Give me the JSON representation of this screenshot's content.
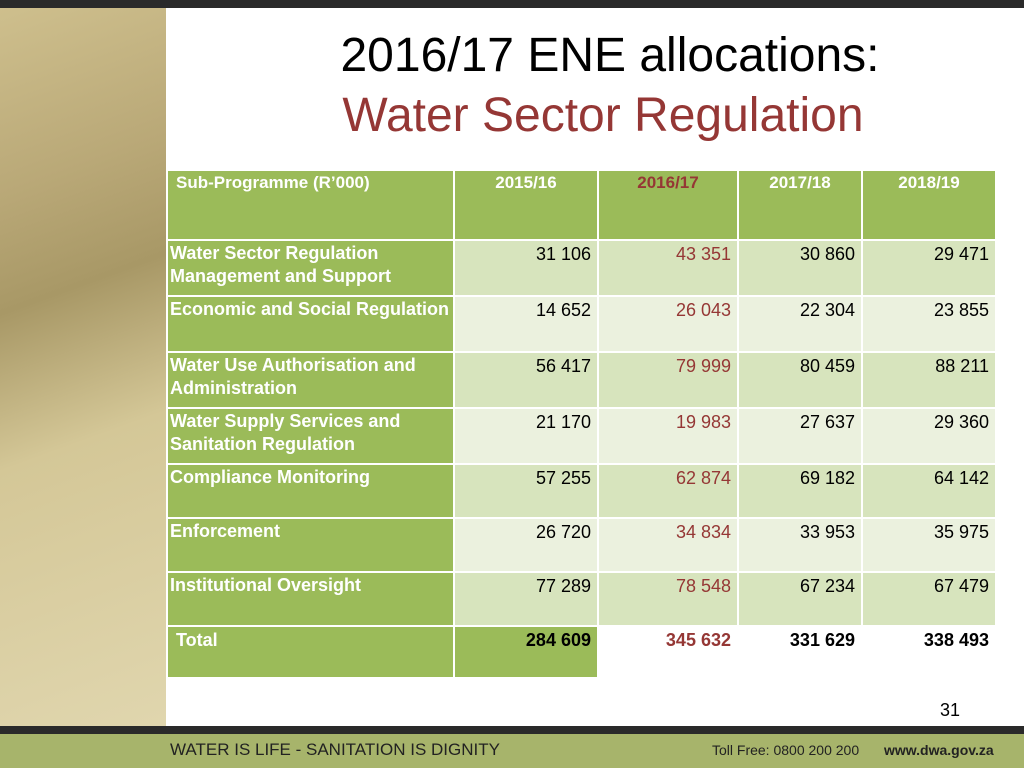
{
  "title": {
    "line1": "2016/17 ENE allocations:",
    "line2": "Water Sector Regulation"
  },
  "table": {
    "header": [
      "Sub-Programme (R’000)",
      "2015/16",
      "2016/17",
      "2017/18",
      "2018/19"
    ],
    "rows": [
      [
        "Water Sector Regulation Management and Support",
        "31 106",
        "43 351",
        "30 860",
        "29 471"
      ],
      [
        "Economic and Social Regulation",
        "14 652",
        "26 043",
        "22 304",
        "23 855"
      ],
      [
        "Water Use Authorisation and Administration",
        "56 417",
        "79 999",
        "80 459",
        "88 211"
      ],
      [
        "Water Supply Services and Sanitation Regulation",
        "21 170",
        "19 983",
        "27 637",
        "29 360"
      ],
      [
        "Compliance Monitoring",
        "57 255",
        "62 874",
        "69 182",
        "64 142"
      ],
      [
        "Enforcement",
        "26 720",
        "34 834",
        "33 953",
        "35 975"
      ],
      [
        "Institutional Oversight",
        "77 289",
        "78 548",
        "67 234",
        "67 479"
      ],
      [
        "Total",
        "284 609",
        "345 632",
        "331 629",
        "338 493"
      ]
    ]
  },
  "page_number": "31",
  "footer": {
    "slogan": "WATER IS LIFE - SANITATION IS DIGNITY",
    "toll_free": "Toll Free: 0800 200 200",
    "website": "www.dwa.gov.za"
  }
}
